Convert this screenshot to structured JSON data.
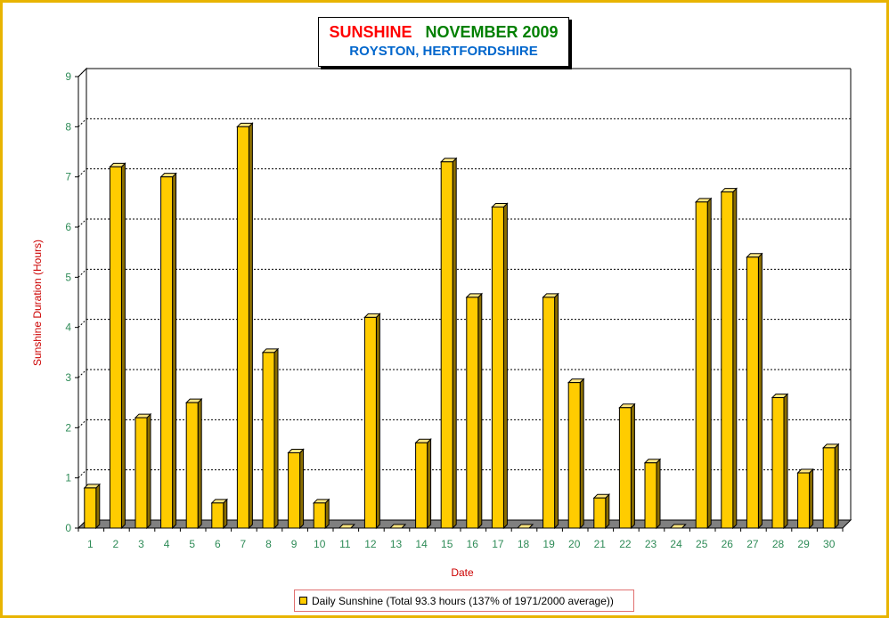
{
  "title": {
    "main": "SUNSHINE",
    "month": "NOVEMBER 2009",
    "location": "ROYSTON, HERTFORDSHIRE"
  },
  "colors": {
    "frame": "#e8b400",
    "bar": "#ffcc00",
    "title_red": "#ff0000",
    "title_green": "#008000",
    "title_blue": "#0066cc",
    "axis_labels": "#cc0000",
    "tick_labels": "#2e8b57"
  },
  "chart_data": {
    "type": "bar",
    "xlabel": "Date",
    "ylabel": "Sunshine Duration (Hours)",
    "ylim": [
      0,
      9
    ],
    "yticks": [
      "0",
      "1",
      "2",
      "3",
      "4",
      "5",
      "6",
      "7",
      "8",
      "9"
    ],
    "grid": "horizontal dashed",
    "legend_position": "bottom",
    "categories": [
      "1",
      "2",
      "3",
      "4",
      "5",
      "6",
      "7",
      "8",
      "9",
      "10",
      "11",
      "12",
      "13",
      "14",
      "15",
      "16",
      "17",
      "18",
      "19",
      "20",
      "21",
      "22",
      "23",
      "24",
      "25",
      "26",
      "27",
      "28",
      "29",
      "30"
    ],
    "series": [
      {
        "name": "Daily Sunshine (Total 93.3 hours (137% of 1971/2000 average))",
        "values": [
          0.8,
          7.2,
          2.2,
          7.0,
          2.5,
          0.5,
          8.0,
          3.5,
          1.5,
          0.5,
          0.0,
          4.2,
          0.0,
          1.7,
          7.3,
          4.6,
          6.4,
          0.0,
          4.6,
          2.9,
          0.6,
          2.4,
          1.3,
          0.0,
          6.5,
          6.7,
          5.4,
          2.6,
          1.1,
          1.6
        ]
      }
    ]
  }
}
